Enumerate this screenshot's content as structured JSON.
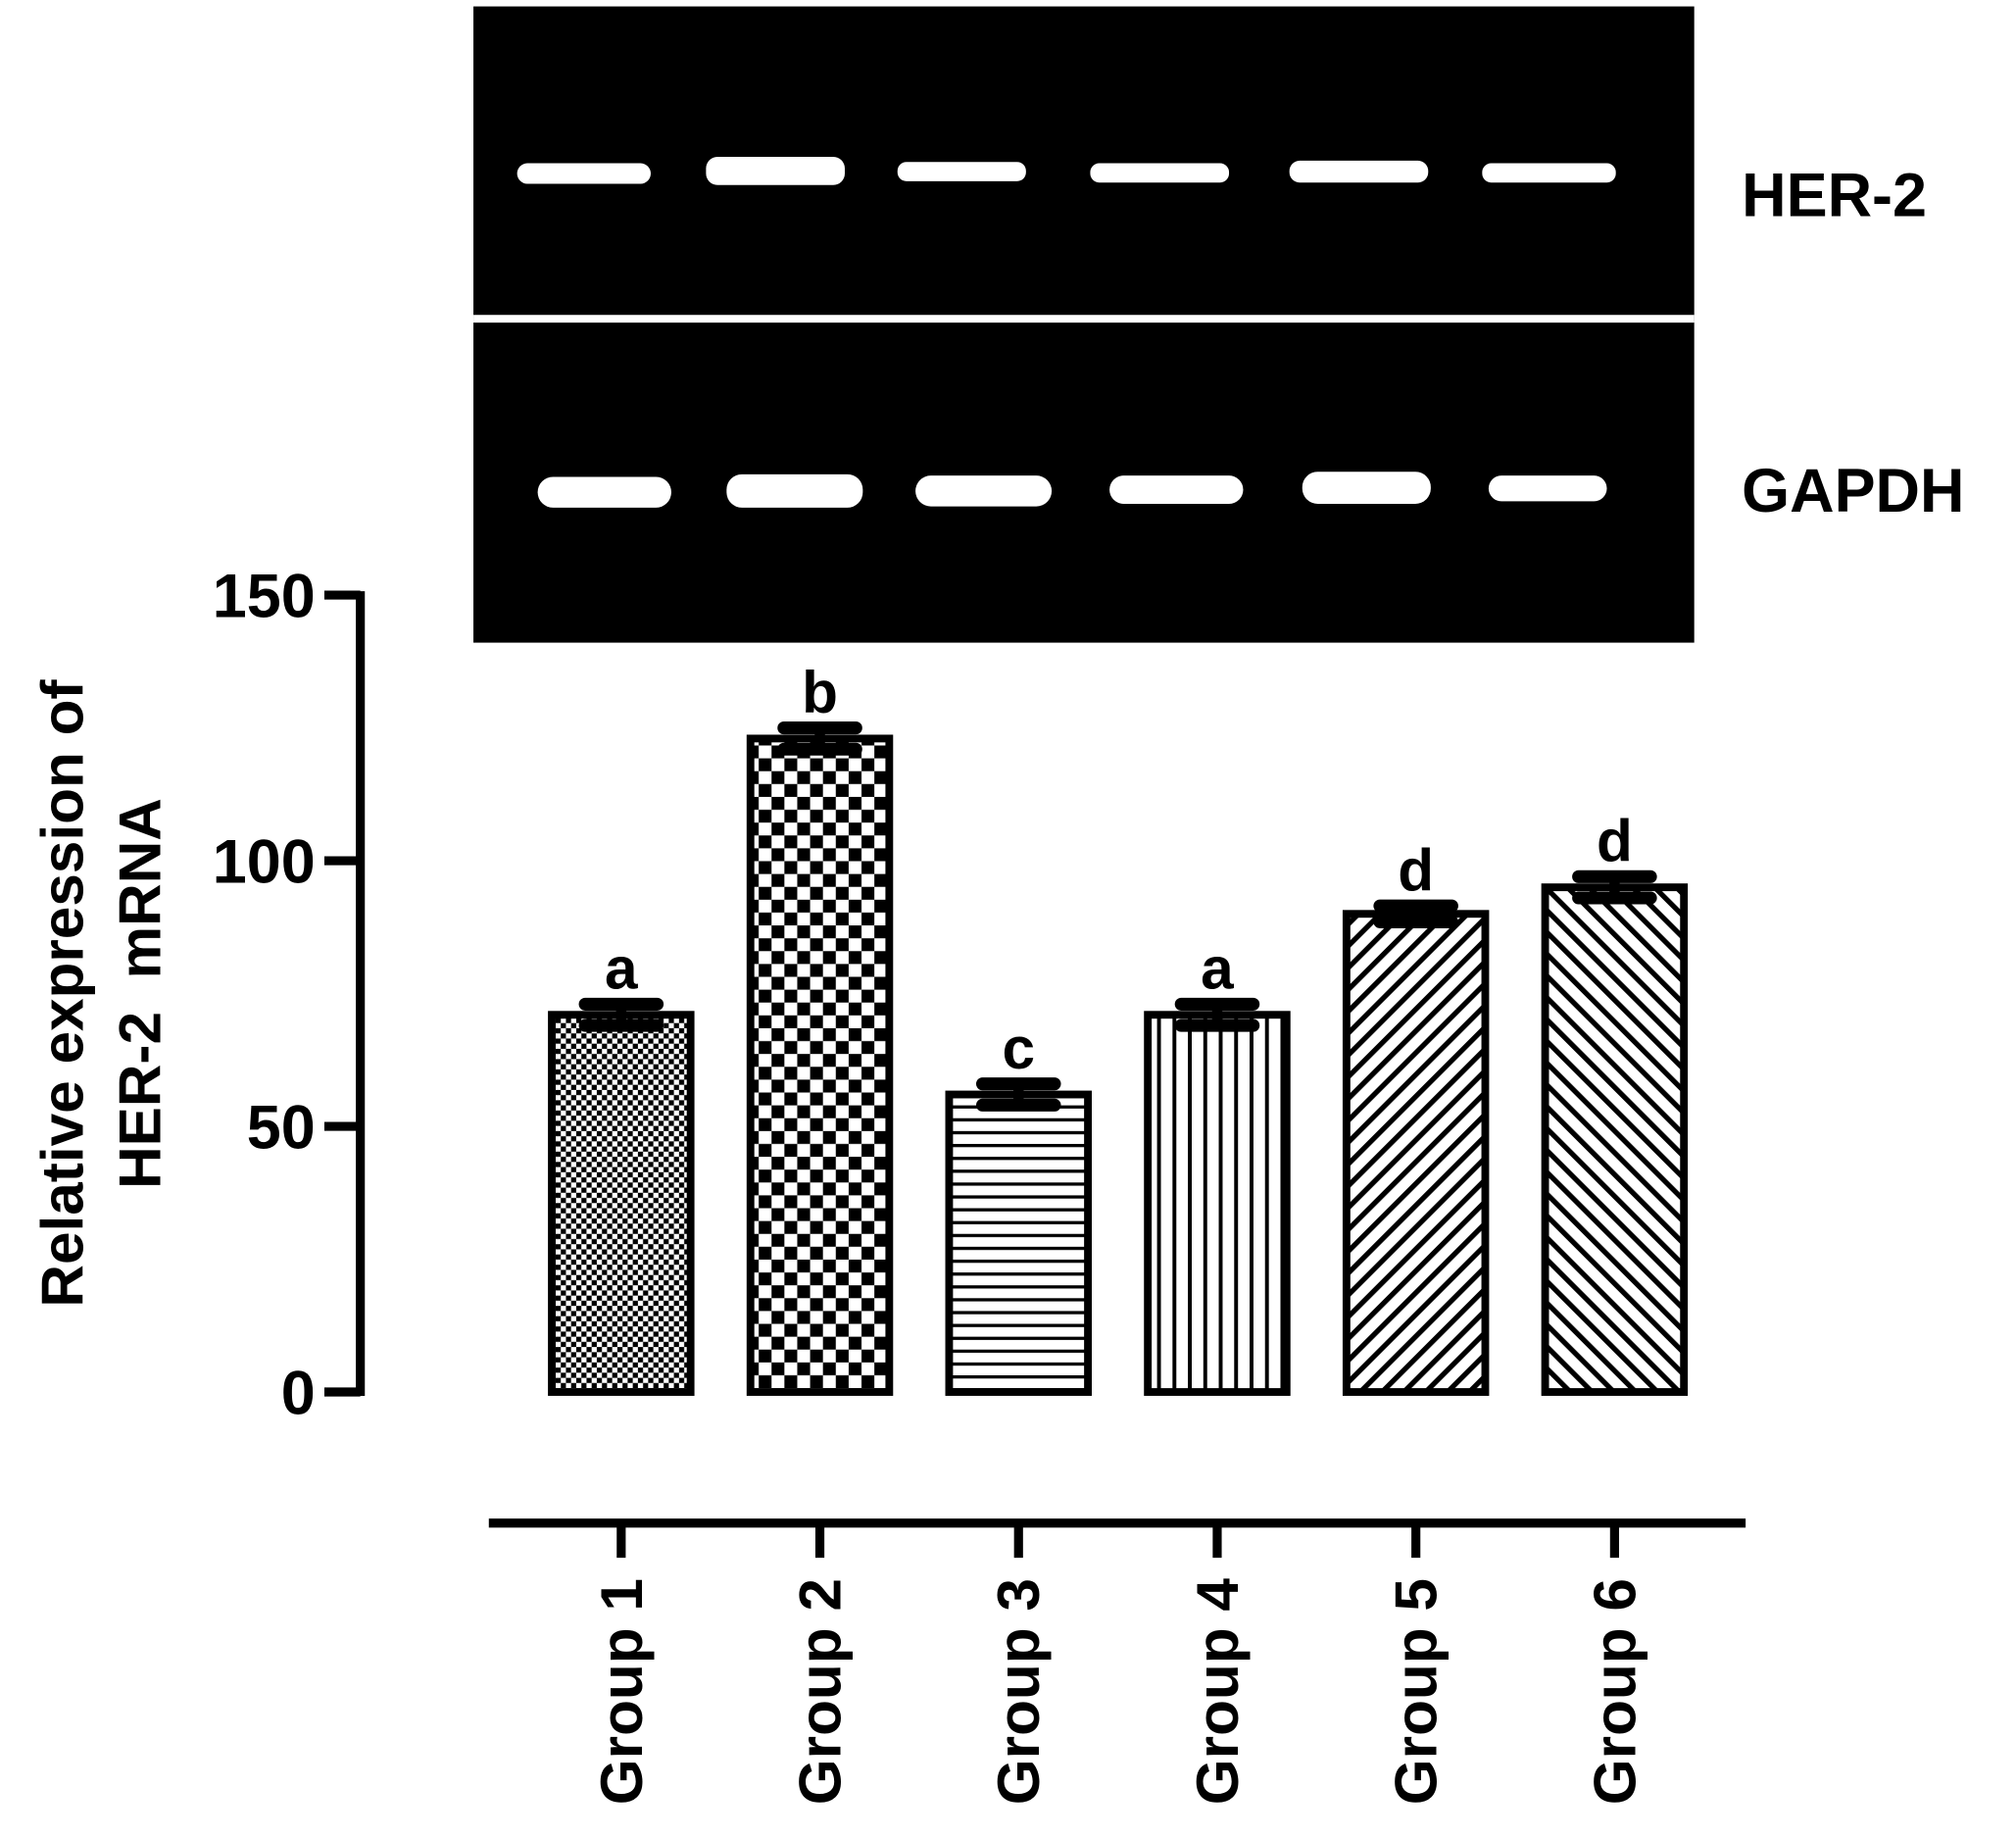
{
  "chart_data": {
    "type": "bar",
    "gel_labels": [
      "HER-2",
      "GAPDH"
    ],
    "ylabel": [
      "Relative expression of",
      "HER-2  mRNA"
    ],
    "categories": [
      "Group 1",
      "Group 2",
      "Group 3",
      "Group 4",
      "Group 5",
      "Group 6"
    ],
    "values": [
      71,
      123,
      56,
      71,
      90,
      95
    ],
    "errors": [
      2,
      2,
      2,
      2,
      1.5,
      2
    ],
    "annotations": [
      "a",
      "b",
      "c",
      "a",
      "d",
      "d"
    ],
    "ylim": [
      0,
      150
    ],
    "yticks": [
      0,
      50,
      100,
      150
    ]
  }
}
